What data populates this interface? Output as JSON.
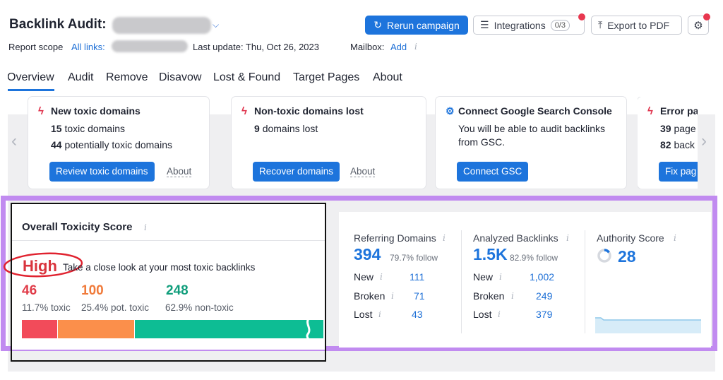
{
  "header": {
    "title": "Backlink Audit:",
    "rerun_label": "Rerun campaign",
    "integrations_label": "Integrations",
    "integrations_count": "0/3",
    "export_label": "Export to PDF",
    "scope_label": "Report scope",
    "scope_link": "All links:",
    "last_update": "Last update: Thu, Oct 26, 2023",
    "mailbox_label": "Mailbox:",
    "mailbox_link": "Add"
  },
  "tabs": [
    "Overview",
    "Audit",
    "Remove",
    "Disavow",
    "Lost & Found",
    "Target Pages",
    "About"
  ],
  "cards": [
    {
      "title": "New toxic domains",
      "line1_num": "15",
      "line1_text": "toxic domains",
      "line2_num": "44",
      "line2_text": "potentially toxic domains",
      "button": "Review toxic domains",
      "about": "About"
    },
    {
      "title": "Non-toxic domains lost",
      "line1_num": "9",
      "line1_text": "domains lost",
      "button": "Recover domains",
      "about": "About"
    },
    {
      "title": "Connect Google Search Console",
      "line1_text": "You will be able to audit backlinks",
      "line2_text": "from GSC.",
      "button": "Connect GSC"
    },
    {
      "title": "Error pa",
      "line1_num": "39",
      "line1_text": "page",
      "line2_num": "82",
      "line2_text": "back",
      "button": "Fix pag"
    }
  ],
  "toxicity": {
    "title": "Overall Toxicity Score",
    "level": "High",
    "message": "Take a close look at your most toxic backlinks",
    "toxic_count": "46",
    "toxic_pct": "11.7% toxic",
    "pot_count": "100",
    "pot_pct": "25.4% pot. toxic",
    "non_count": "248",
    "non_pct": "62.9% non-toxic",
    "bar_fractions": [
      0.117,
      0.254,
      0.629
    ],
    "colors": {
      "toxic": "#f24b5a",
      "pot": "#fb8f4b",
      "non": "#0dbd94"
    }
  },
  "referring": {
    "title": "Referring Domains",
    "value": "394",
    "follow": "79.7% follow",
    "rows": [
      [
        "New",
        "111"
      ],
      [
        "Broken",
        "71"
      ],
      [
        "Lost",
        "43"
      ]
    ]
  },
  "analyzed": {
    "title": "Analyzed Backlinks",
    "value": "1.5K",
    "follow": "82.9% follow",
    "rows": [
      [
        "New",
        "1,002"
      ],
      [
        "Broken",
        "249"
      ],
      [
        "Lost",
        "379"
      ]
    ]
  },
  "authority": {
    "title": "Authority Score",
    "value": "28"
  },
  "colors": {
    "accent": "#1d74dc",
    "purple_highlight": "#c18bf0",
    "alert": "#e0344d"
  }
}
